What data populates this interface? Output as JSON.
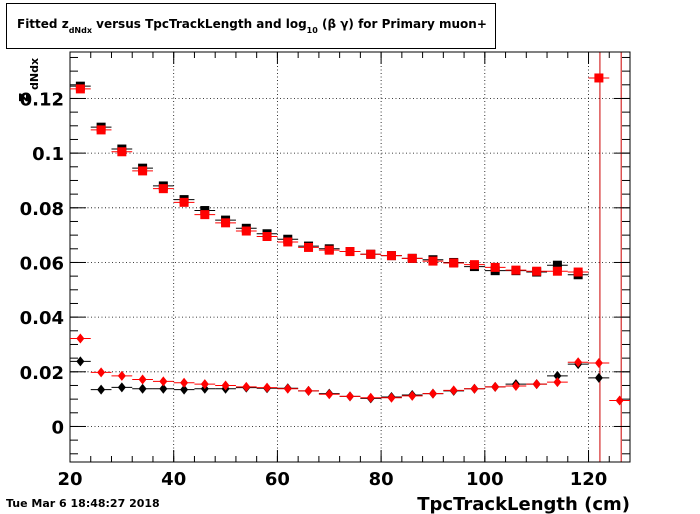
{
  "title": {
    "prefix": "Fitted  z",
    "sub": "dNdx",
    "middle": "  versus TpcTrackLength and log",
    "sub2": "10",
    "suffix": " (β γ) for Primary muon+"
  },
  "footer": {
    "date": "Tue Mar  6 18:48:27 2018"
  },
  "chart_data": {
    "type": "scatter",
    "xlabel": "TpcTrackLength (cm)",
    "ylabel": "z",
    "ylabel_sub": "dNdx",
    "xlim": [
      20,
      128
    ],
    "ylim": [
      -0.013,
      0.137
    ],
    "xticks": [
      20,
      40,
      60,
      80,
      100,
      120
    ],
    "yticks": [
      0,
      0.02,
      0.04,
      0.06,
      0.08,
      0.1,
      0.12
    ],
    "ytick_labels": [
      "0",
      "0.02",
      "0.04",
      "0.06",
      "0.08",
      "0.1",
      "0.12"
    ],
    "grid": true,
    "vertical_lines_x": [
      122.2,
      126.3
    ],
    "series": [
      {
        "color": "#000000",
        "marker": "square",
        "x": [
          22,
          26,
          30,
          34,
          38,
          42,
          46,
          50,
          54,
          58,
          62,
          66,
          70,
          74,
          78,
          82,
          86,
          90,
          94,
          98,
          102,
          106,
          110,
          114,
          118
        ],
        "y": [
          0.1245,
          0.1095,
          0.1015,
          0.0945,
          0.088,
          0.083,
          0.079,
          0.0755,
          0.0725,
          0.0705,
          0.0685,
          0.066,
          0.065,
          0.064,
          0.063,
          0.0625,
          0.0615,
          0.061,
          0.06,
          0.0585,
          0.057,
          0.057,
          0.0565,
          0.059,
          0.0555
        ]
      },
      {
        "color": "#ff0000",
        "marker": "square",
        "x": [
          22,
          26,
          30,
          34,
          38,
          42,
          46,
          50,
          54,
          58,
          62,
          66,
          70,
          74,
          78,
          82,
          86,
          90,
          94,
          98,
          102,
          106,
          110,
          114,
          118,
          122
        ],
        "y": [
          0.1235,
          0.1085,
          0.1005,
          0.0935,
          0.087,
          0.082,
          0.0775,
          0.0745,
          0.0715,
          0.0695,
          0.0675,
          0.0655,
          0.0645,
          0.064,
          0.063,
          0.0625,
          0.0615,
          0.0605,
          0.0598,
          0.0592,
          0.0582,
          0.0572,
          0.0568,
          0.0568,
          0.0565,
          0.1275
        ]
      },
      {
        "color": "#000000",
        "marker": "diamond",
        "x": [
          22,
          26,
          30,
          34,
          38,
          42,
          46,
          50,
          54,
          58,
          62,
          66,
          70,
          74,
          78,
          82,
          86,
          90,
          94,
          98,
          102,
          106,
          110,
          114,
          118,
          122
        ],
        "y": [
          0.0238,
          0.0135,
          0.0143,
          0.0138,
          0.0138,
          0.0135,
          0.0138,
          0.0138,
          0.0142,
          0.014,
          0.014,
          0.013,
          0.012,
          0.011,
          0.0103,
          0.0108,
          0.0115,
          0.012,
          0.013,
          0.0138,
          0.0145,
          0.0155,
          0.0155,
          0.0185,
          0.0228,
          0.0178
        ]
      },
      {
        "color": "#ff0000",
        "marker": "diamond",
        "x": [
          22,
          26,
          30,
          34,
          38,
          42,
          46,
          50,
          54,
          58,
          62,
          66,
          70,
          74,
          78,
          82,
          86,
          90,
          94,
          98,
          102,
          106,
          110,
          114,
          118,
          122,
          126
        ],
        "y": [
          0.0322,
          0.0198,
          0.0185,
          0.0172,
          0.0165,
          0.016,
          0.0155,
          0.015,
          0.0145,
          0.0142,
          0.0138,
          0.013,
          0.0118,
          0.011,
          0.0105,
          0.0105,
          0.0112,
          0.012,
          0.0132,
          0.0138,
          0.0145,
          0.0148,
          0.0155,
          0.0162,
          0.0235,
          0.0232,
          0.0095
        ]
      }
    ]
  }
}
